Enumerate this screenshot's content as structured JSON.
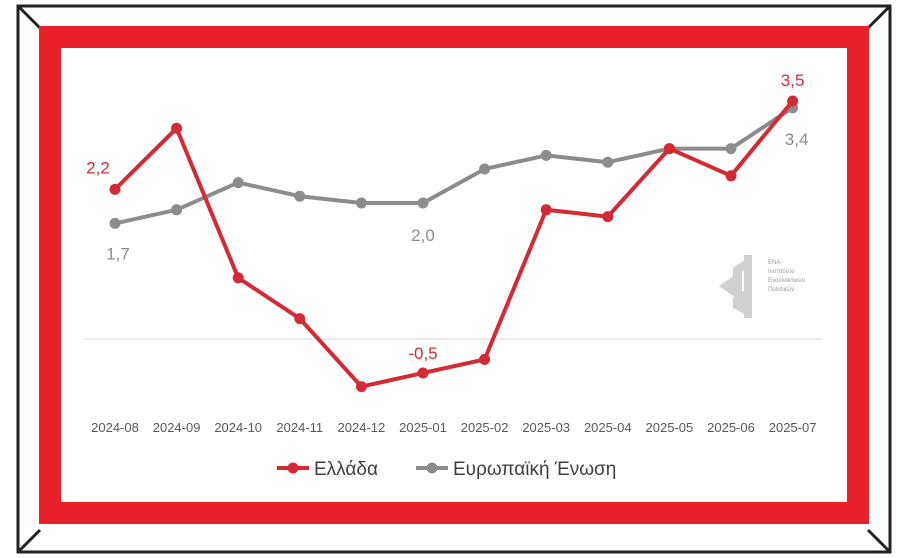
{
  "colors": {
    "frame_red": "#e8202a",
    "greece": "#d42a35",
    "eu": "#8c8c8c",
    "border": "#222222"
  },
  "logo": {
    "name": "ENA-logo-icon",
    "lines": [
      "ΕΝΑ",
      "Ινστιτούτο",
      "Εναλλακτικών",
      "Πολιτικών"
    ]
  },
  "chart_data": {
    "type": "line",
    "categories": [
      "2024-08",
      "2024-09",
      "2024-10",
      "2024-11",
      "2024-12",
      "2025-01",
      "2025-02",
      "2025-03",
      "2025-04",
      "2025-05",
      "2025-06",
      "2025-07"
    ],
    "series": [
      {
        "name": "Ελλάδα",
        "values": [
          2.2,
          3.1,
          0.9,
          0.3,
          -0.7,
          -0.5,
          -0.3,
          1.9,
          1.8,
          2.8,
          2.4,
          3.5
        ]
      },
      {
        "name": "Ευρωπαϊκή Ένωση",
        "values": [
          1.7,
          1.9,
          2.3,
          2.1,
          2.0,
          2.0,
          2.5,
          2.7,
          2.6,
          2.8,
          2.8,
          3.4
        ]
      }
    ],
    "data_labels": [
      {
        "series": 0,
        "index": 0,
        "text": "2,2"
      },
      {
        "series": 0,
        "index": 5,
        "text": "-0,5"
      },
      {
        "series": 0,
        "index": 11,
        "text": "3,5"
      },
      {
        "series": 1,
        "index": 0,
        "text": "1,7"
      },
      {
        "series": 1,
        "index": 5,
        "text": "2,0"
      },
      {
        "series": 1,
        "index": 11,
        "text": "3,4"
      }
    ],
    "ylim": [
      -1,
      4
    ],
    "zero_line": true,
    "grid": false,
    "legend_position": "bottom-center"
  }
}
